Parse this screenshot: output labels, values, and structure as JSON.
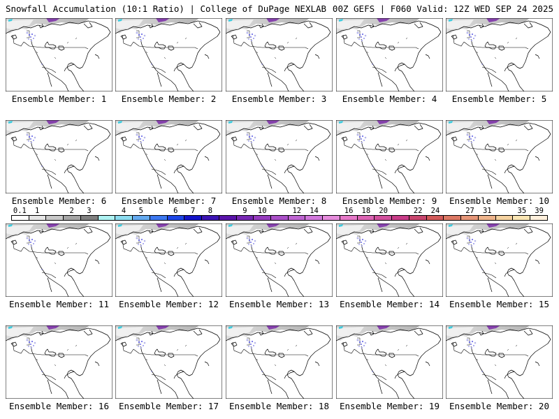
{
  "header": {
    "left_title": "Snowfall Accumulation (10:1 Ratio) | College of DuPage NEXLAB",
    "right_title": "00Z GEFS | F060 Valid: 12Z WED SEP 24 2025"
  },
  "legend": {
    "labels": [
      "0.1",
      "1",
      "2",
      "3",
      "4",
      "5",
      "6",
      "7",
      "8",
      "9",
      "10",
      "12",
      "14",
      "16",
      "18",
      "20",
      "22",
      "24",
      "27",
      "31",
      "35",
      "39"
    ],
    "colors": [
      "#ffffff",
      "#e6e6e6",
      "#c8c8c8",
      "#a6a6a6",
      "#808080",
      "#aef2f2",
      "#8cdcf0",
      "#64aaf0",
      "#3c78f0",
      "#1e46e6",
      "#1414c8",
      "#3c14b4",
      "#5a14aa",
      "#7828b4",
      "#963cbe",
      "#aa50c8",
      "#be64d2",
      "#d278dc",
      "#e68cdc",
      "#e678c8",
      "#dc64b4",
      "#d2509e",
      "#c83c88",
      "#c8466e",
      "#d25a5a",
      "#dc7864",
      "#e69678",
      "#eeb48c",
      "#f5d2a0",
      "#fae6b4",
      "#fff0dc"
    ]
  },
  "members": [
    {
      "label": "Ensemble Member: 1"
    },
    {
      "label": "Ensemble Member: 2"
    },
    {
      "label": "Ensemble Member: 3"
    },
    {
      "label": "Ensemble Member: 4"
    },
    {
      "label": "Ensemble Member: 5"
    },
    {
      "label": "Ensemble Member: 6"
    },
    {
      "label": "Ensemble Member: 7"
    },
    {
      "label": "Ensemble Member: 8"
    },
    {
      "label": "Ensemble Member: 9"
    },
    {
      "label": "Ensemble Member: 10"
    },
    {
      "label": "Ensemble Member: 11"
    },
    {
      "label": "Ensemble Member: 12"
    },
    {
      "label": "Ensemble Member: 13"
    },
    {
      "label": "Ensemble Member: 14"
    },
    {
      "label": "Ensemble Member: 15"
    },
    {
      "label": "Ensemble Member: 16"
    },
    {
      "label": "Ensemble Member: 17"
    },
    {
      "label": "Ensemble Member: 18"
    },
    {
      "label": "Ensemble Member: 19"
    },
    {
      "label": "Ensemble Member: 20"
    }
  ]
}
